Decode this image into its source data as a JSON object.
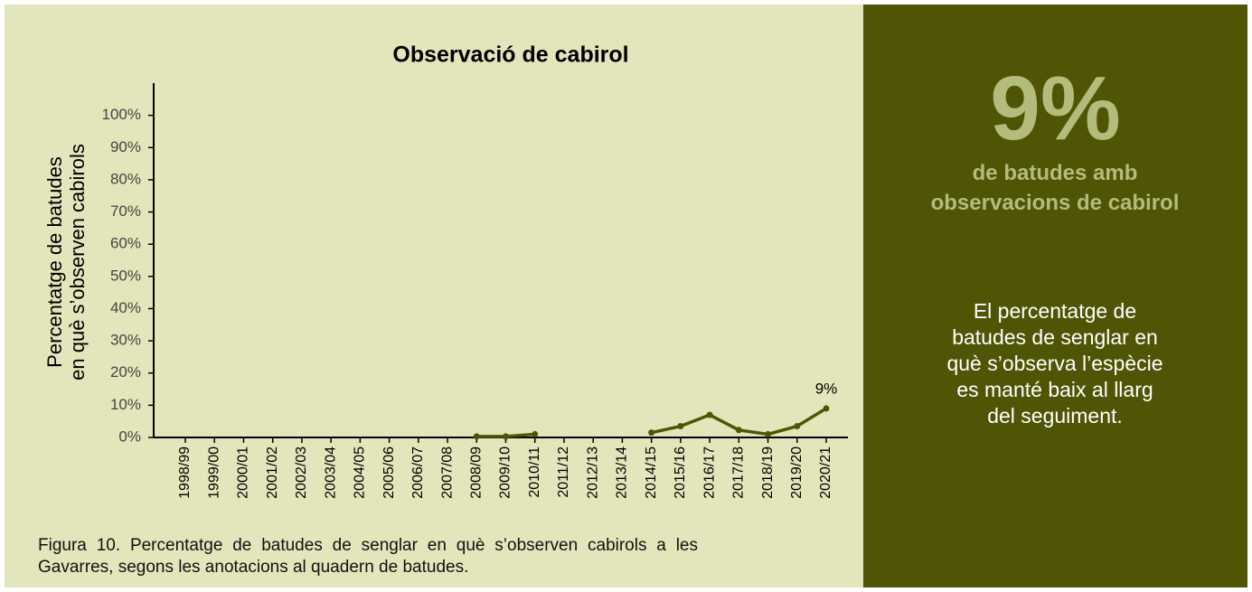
{
  "chart_data": {
    "type": "line",
    "title": "Observació de cabirol",
    "ylabel": [
      "Percentatge de batudes",
      "en què s’observen cabirols"
    ],
    "categories": [
      "1998/99",
      "1999/00",
      "2000/01",
      "2001/02",
      "2002/03",
      "2003/04",
      "2004/05",
      "2005/06",
      "2006/07",
      "2007/08",
      "2008/09",
      "2009/10",
      "2010/11",
      "2011/12",
      "2012/13",
      "2013/14",
      "2014/15",
      "2015/16",
      "2016/17",
      "2017/18",
      "2018/19",
      "2019/20",
      "2020/21"
    ],
    "series": [
      {
        "name": "Observació de cabirol",
        "color": "#4f5504",
        "values": [
          null,
          null,
          null,
          null,
          null,
          null,
          null,
          null,
          null,
          null,
          0.3,
          0.3,
          1,
          null,
          null,
          null,
          1.5,
          3.5,
          7,
          2.3,
          1,
          3.5,
          9
        ],
        "value_labels": [
          null,
          null,
          null,
          null,
          null,
          null,
          null,
          null,
          null,
          null,
          null,
          null,
          null,
          null,
          null,
          null,
          null,
          null,
          null,
          null,
          null,
          null,
          "9%"
        ]
      }
    ],
    "ylim": [
      0,
      110
    ],
    "yticks": [
      {
        "value": 0,
        "label": "0%"
      },
      {
        "value": 10,
        "label": "10%"
      },
      {
        "value": 20,
        "label": "20%"
      },
      {
        "value": 30,
        "label": "30%"
      },
      {
        "value": 40,
        "label": "40%"
      },
      {
        "value": 50,
        "label": "50%"
      },
      {
        "value": 60,
        "label": "60%"
      },
      {
        "value": 70,
        "label": "70%"
      },
      {
        "value": 80,
        "label": "80%"
      },
      {
        "value": 90,
        "label": "90%"
      },
      {
        "value": 100,
        "label": "100%"
      }
    ],
    "grid": false
  },
  "caption": "Figura 10. Percentatge de batudes de senglar en què s’observen cabirols a les Gavarres, segons les anotacions al quadern de batudes.",
  "panel": {
    "headline": "9%",
    "subhead": "de batudes amb observacions de cabirol",
    "text": "El percentatge de batudes de senglar en què s’observa l’espècie es manté baix al llarg del seguiment."
  }
}
